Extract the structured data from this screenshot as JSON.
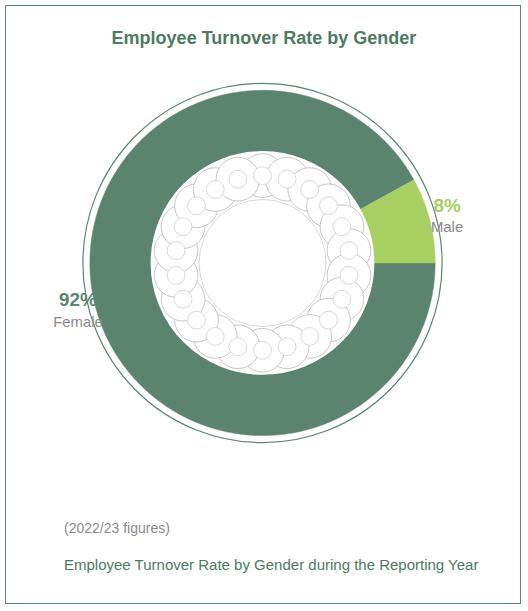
{
  "chart_data": {
    "type": "pie",
    "title": "Employee Turnover Rate by Gender",
    "categories": [
      "Female",
      "Male"
    ],
    "values": [
      92,
      8
    ],
    "value_labels": [
      "92%",
      "8%"
    ],
    "colors": [
      "#5a8470",
      "#a8cf62"
    ],
    "data_labels": true,
    "note": "(2022/23 figures)",
    "caption": "Employee Turnover Rate by Gender during the Reporting Year"
  }
}
